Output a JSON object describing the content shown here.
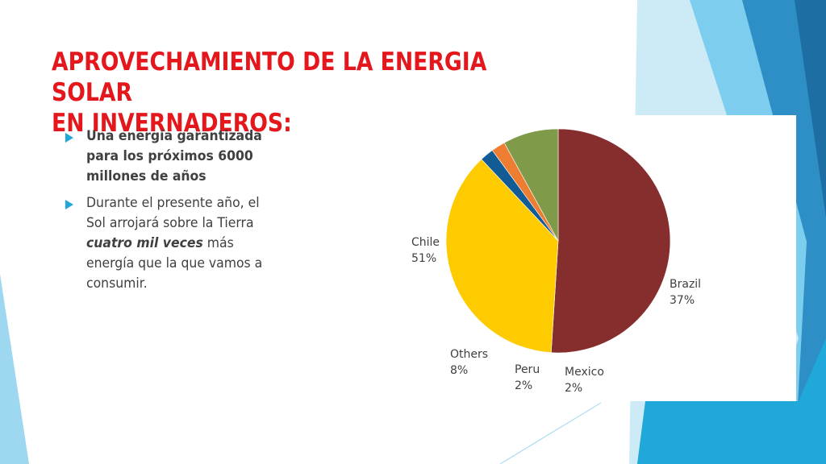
{
  "slide": {
    "title_line1": "APROVECHAMIENTO DE LA ENERGIA SOLAR",
    "title_line2": "EN INVERNADEROS:",
    "accent_color": "#e3171c",
    "bullet_color": "#1fa8d9",
    "bullets": [
      {
        "lines": [
          "Una energía garantizada",
          "para los próximos 6000",
          "millones de años"
        ]
      },
      {
        "line1": " Durante el presente año, el",
        "line2": "Sol arrojará sobre la Tierra",
        "line3_emph": "cuatro mil veces",
        "line3_rest": " más",
        "line4": "energía que la que vamos a",
        "line5": "consumir."
      }
    ]
  },
  "chart_data": {
    "type": "pie",
    "categories": [
      "Chile",
      "Brazil",
      "Mexico",
      "Peru",
      "Others"
    ],
    "values": [
      51,
      37,
      2,
      2,
      8
    ],
    "value_labels": [
      "51%",
      "37%",
      "2%",
      "2%",
      "8%"
    ],
    "colors": [
      "#862d2d",
      "#fecb00",
      "#125b94",
      "#ed7d31",
      "#7f9a48"
    ],
    "start_angle_deg": 90,
    "direction": "clockwise",
    "label_placement": "outside",
    "legend": "none"
  }
}
